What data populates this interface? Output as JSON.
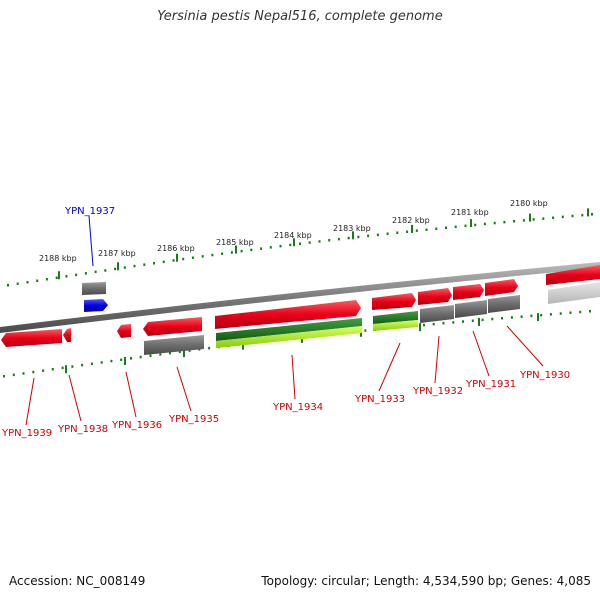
{
  "title": "Yersinia pestis Nepal516, complete genome",
  "footer": {
    "accession": "Accession: NC_008149",
    "summary": "Topology: circular; Length: 4,534,590 bp; Genes: 4,085"
  },
  "colors": {
    "gene": "#e8001a",
    "gene_light": "#ff6a6a",
    "gray": "#6d6d6d",
    "dark_green": "#1f7a1f",
    "lime": "#99dd22",
    "blue": "#0000e0",
    "label": "#cc0000",
    "tick": "#1a7a1a"
  },
  "kbp_marks": [
    "2188 kbp",
    "2187 kbp",
    "2186 kbp",
    "2185 kbp",
    "2184 kbp",
    "2183 kbp",
    "2182 kbp",
    "2181 kbp",
    "2180 kbp"
  ],
  "gene_labels": [
    "YPN_1937",
    "YPN_1939",
    "YPN_1938",
    "YPN_1936",
    "YPN_1935",
    "YPN_1934",
    "YPN_1933",
    "YPN_1932",
    "YPN_1931",
    "YPN_1930"
  ]
}
